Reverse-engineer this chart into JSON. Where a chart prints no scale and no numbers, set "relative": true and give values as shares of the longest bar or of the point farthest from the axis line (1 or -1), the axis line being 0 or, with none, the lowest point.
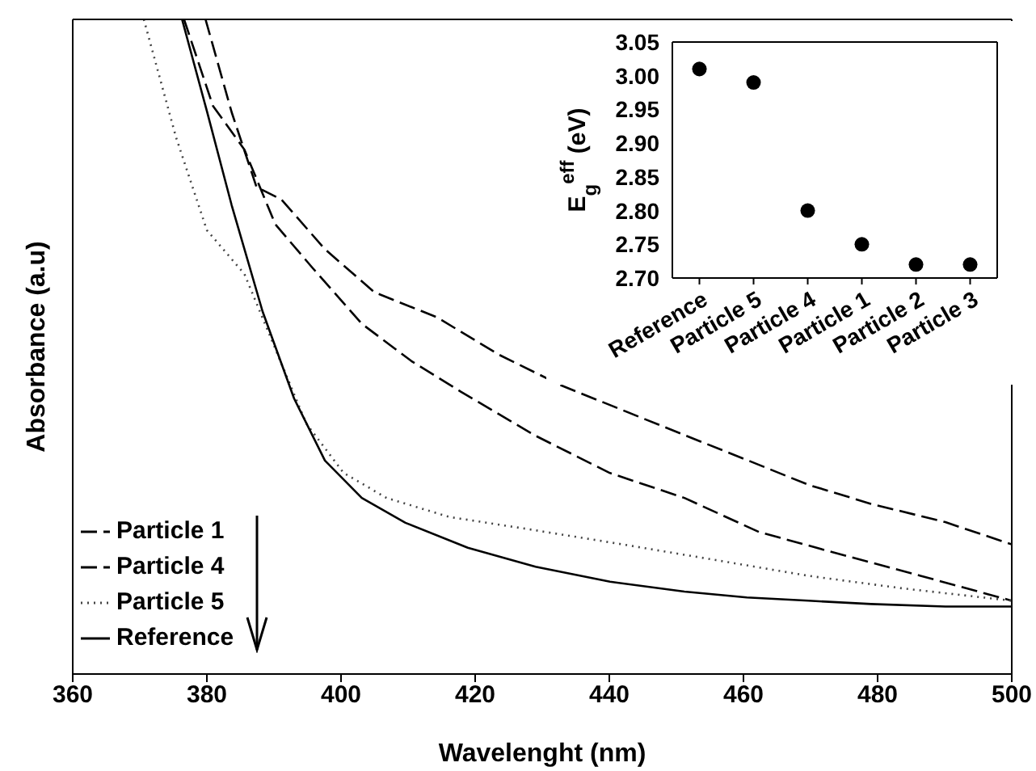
{
  "chart_data": [
    {
      "type": "line",
      "xlabel": "Wavelenght (nm)",
      "ylabel": "Absorbance (a.u)",
      "relative": true,
      "xlim": [
        360,
        500
      ],
      "xticks": [
        360,
        380,
        400,
        420,
        440,
        460,
        480,
        500
      ],
      "legend": "bottom left",
      "marker": "none",
      "series": [
        {
          "name": "Particle 1",
          "color": "#000000",
          "line_style": "dashed",
          "x": [
            379.8,
            383.7,
            387.4,
            391.1,
            397.6,
            405,
            414.3,
            423.5,
            432.8,
            442,
            451.2,
            460.5,
            469.7,
            479,
            490.1,
            500
          ],
          "values": [
            1,
            0.858,
            0.744,
            0.725,
            0.649,
            0.583,
            0.545,
            0.488,
            0.441,
            0.403,
            0.365,
            0.327,
            0.289,
            0.26,
            0.232,
            0.198
          ]
        },
        {
          "name": "Particle 4",
          "color": "#000000",
          "line_style": "dashed",
          "x": [
            376.6,
            380.9,
            385.6,
            390.2,
            395.7,
            403.1,
            410.5,
            417.9,
            429,
            440.1,
            451.2,
            462.3,
            474.4,
            486.4,
            500
          ],
          "values": [
            1,
            0.868,
            0.801,
            0.687,
            0.621,
            0.535,
            0.478,
            0.431,
            0.364,
            0.307,
            0.269,
            0.217,
            0.183,
            0.15,
            0.112
          ]
        },
        {
          "name": "Particle 5",
          "color": "#444444",
          "line_style": "dotted",
          "x": [
            370.6,
            375.4,
            380,
            385.6,
            390.2,
            394.8,
            400.4,
            406.8,
            416.1,
            428.1,
            442,
            455.9,
            469.7,
            483.6,
            500
          ],
          "values": [
            1,
            0.82,
            0.678,
            0.611,
            0.497,
            0.383,
            0.307,
            0.269,
            0.24,
            0.221,
            0.198,
            0.174,
            0.15,
            0.131,
            0.112
          ]
        },
        {
          "name": "Reference",
          "color": "#000000",
          "line_style": "solid",
          "x": [
            376.3,
            380,
            383.7,
            388.3,
            393,
            397.6,
            403.1,
            409.6,
            418.9,
            429,
            440.1,
            451.2,
            460.5,
            469.7,
            479,
            490.1,
            500
          ],
          "values": [
            1,
            0.86,
            0.716,
            0.554,
            0.421,
            0.326,
            0.269,
            0.231,
            0.193,
            0.164,
            0.141,
            0.126,
            0.117,
            0.112,
            0.107,
            0.103,
            0.103
          ]
        }
      ]
    },
    {
      "type": "scatter",
      "ylabel": "E$_{g}$$^{eff}$ (eV)",
      "categories": [
        "Reference",
        "Particle 5",
        "Particle 4",
        "Particle 1",
        "Particle 2",
        "Particle 3"
      ],
      "values": [
        3.01,
        2.99,
        2.8,
        2.75,
        2.72,
        2.72
      ],
      "color": "#000000",
      "marker": "circle",
      "ylim": [
        2.7,
        3.05
      ],
      "yticks": [
        {
          "value": 2.7,
          "label": "2.70"
        },
        {
          "value": 2.75,
          "label": "2.75"
        },
        {
          "value": 2.8,
          "label": "2.80"
        },
        {
          "value": 2.85,
          "label": "2.85"
        },
        {
          "value": 2.9,
          "label": "2.90"
        },
        {
          "value": 2.95,
          "label": "2.95"
        },
        {
          "value": 3.0,
          "label": "3.00"
        },
        {
          "value": 3.05,
          "label": "3.05"
        }
      ]
    }
  ]
}
